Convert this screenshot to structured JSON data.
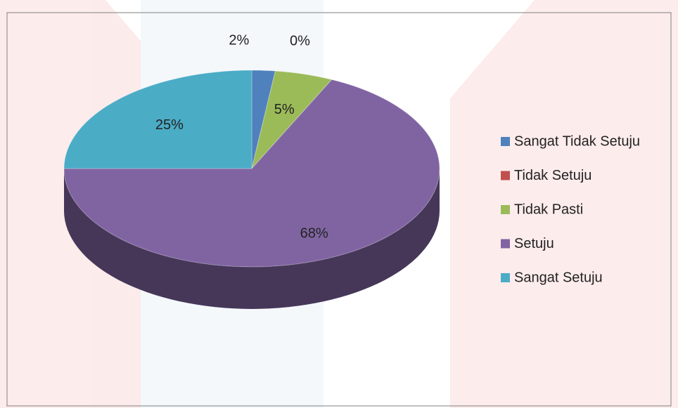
{
  "chart_data": {
    "type": "pie",
    "categories": [
      "Sangat Tidak Setuju",
      "Tidak Setuju",
      "Tidak Pasti",
      "Setuju",
      "Sangat Setuju"
    ],
    "values": [
      2,
      0,
      5,
      68,
      25
    ],
    "value_labels": [
      "2%",
      "0%",
      "5%",
      "68%",
      "25%"
    ],
    "colors": [
      "#4f81bd",
      "#c0504d",
      "#9bbb59",
      "#8064a2",
      "#4bacc6"
    ],
    "legend": "right"
  }
}
